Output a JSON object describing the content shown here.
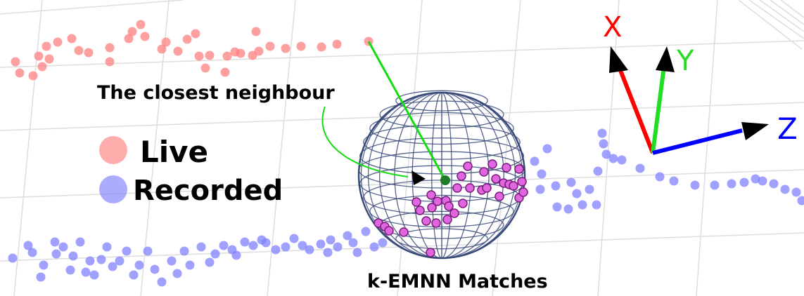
{
  "labels": {
    "closest_neighbour": "The closest neighbour",
    "legend_live": "Live",
    "legend_recorded": "Recorded",
    "matches": "k-EMNN Matches"
  },
  "axes": {
    "x": "X",
    "y": "Y",
    "z": "Z"
  },
  "colors": {
    "live": "#ff8080",
    "recorded": "#8080ff",
    "match_fill": "#e066e0",
    "match_stroke": "#7a1a7a",
    "neighbour": "#1f7a2a",
    "link": "#11dd11",
    "sphere": "#3a4a7a",
    "axis_x": "#ff0000",
    "axis_y": "#22dd22",
    "axis_z": "#0000ff",
    "grid": "#dddddd"
  }
}
